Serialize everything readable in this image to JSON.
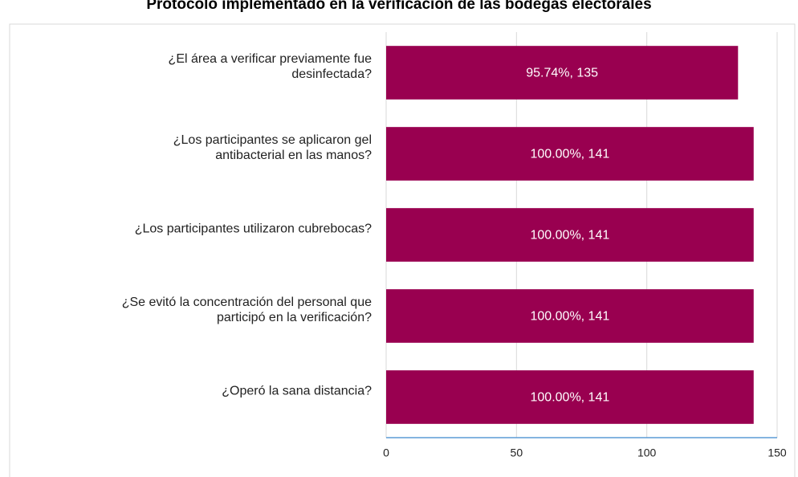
{
  "chart_data": {
    "type": "bar",
    "orientation": "horizontal",
    "title": "Protocolo implementado en la verificación de las bodegas electorales",
    "categories": [
      "¿El área a verificar previamente fue\ndesinfectada?",
      "¿Los participantes se aplicaron gel\nantibacterial en las manos?",
      "¿Los participantes utilizaron cubrebocas?",
      "¿Se evitó la concentración del personal que\nparticipó en la verificación?",
      "¿Operó la sana distancia?"
    ],
    "values": [
      135,
      141,
      141,
      141,
      141
    ],
    "value_labels": [
      "95.74%, 135",
      "100.00%, 141",
      "100.00%, 141",
      "100.00%, 141",
      "100.00%, 141"
    ],
    "color": "#990050",
    "xlim": [
      0,
      150
    ],
    "xticks": [
      0,
      50,
      100,
      150
    ],
    "grid": true
  }
}
